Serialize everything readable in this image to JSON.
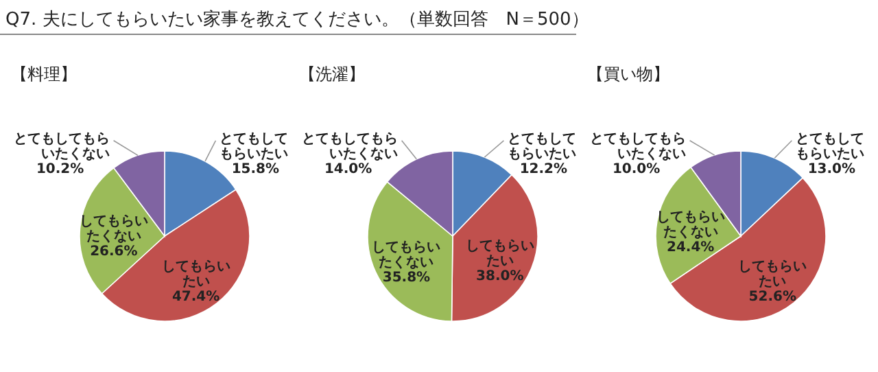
{
  "chart_data": [
    {
      "type": "other",
      "title": "Q7. 夫にしてもらいたい家事を教えてください。（単数回答　N＝500）"
    },
    {
      "type": "pie",
      "title": "【料理】",
      "categories": [
        "とてもしてもらいたい",
        "してもらいたい",
        "してもらいたくない",
        "とてもしてもらいたくない"
      ],
      "values": [
        15.8,
        47.4,
        26.6,
        10.2
      ],
      "value_labels": [
        "15.8%",
        "47.4%",
        "26.6%",
        "10.2%"
      ],
      "colors": [
        "#4f81bd",
        "#c0504d",
        "#9bbb59",
        "#8064a2"
      ]
    },
    {
      "type": "pie",
      "title": "【洗濯】",
      "categories": [
        "とてもしてもらいたい",
        "してもらいたい",
        "してもらいたくない",
        "とてもしてもらいたくない"
      ],
      "values": [
        12.2,
        38.0,
        35.8,
        14.0
      ],
      "value_labels": [
        "12.2%",
        "38.0%",
        "35.8%",
        "14.0%"
      ],
      "colors": [
        "#4f81bd",
        "#c0504d",
        "#9bbb59",
        "#8064a2"
      ]
    },
    {
      "type": "pie",
      "title": "【買い物】",
      "categories": [
        "とてもしてもらいたい",
        "してもらいたい",
        "してもらいたくない",
        "とてもしてもらいたくない"
      ],
      "values": [
        13.0,
        52.6,
        24.4,
        10.0
      ],
      "value_labels": [
        "13.0%",
        "52.6%",
        "24.4%",
        "10.0%"
      ],
      "colors": [
        "#4f81bd",
        "#c0504d",
        "#9bbb59",
        "#8064a2"
      ]
    }
  ]
}
